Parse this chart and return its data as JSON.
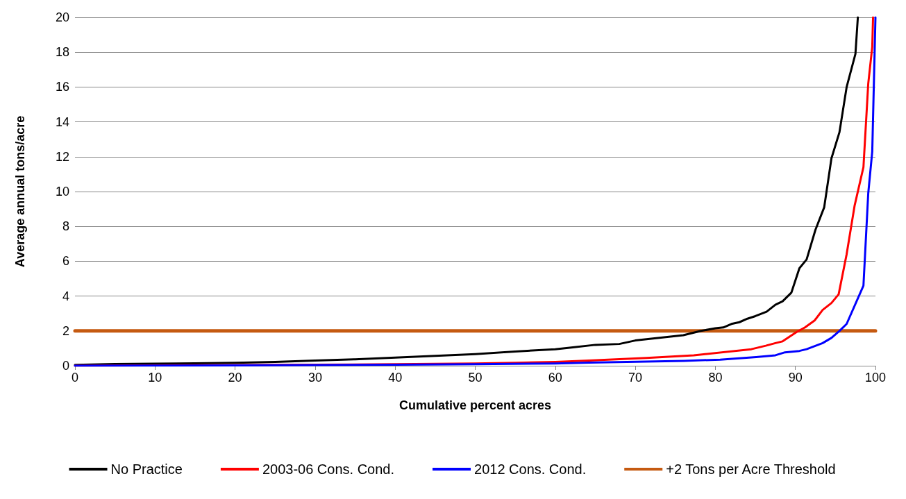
{
  "chart_data": {
    "type": "line",
    "xlabel": "Cumulative percent acres",
    "ylabel": "Average annual tons/acre",
    "xlim": [
      0,
      100
    ],
    "xticks": [
      0,
      10,
      20,
      30,
      40,
      50,
      60,
      70,
      80,
      90,
      100
    ],
    "ylim": [
      0,
      20
    ],
    "yticks": [
      0,
      2,
      4,
      6,
      8,
      10,
      12,
      14,
      16,
      18,
      20
    ],
    "grid": "y",
    "legend": "bottom",
    "marker": "none",
    "line_style": "solid",
    "series": [
      {
        "name": "No Practice",
        "color": "#000000",
        "x": [
          0,
          5,
          10,
          15,
          20,
          25,
          30,
          35,
          40,
          45,
          50,
          55,
          60,
          62,
          65,
          68,
          70,
          72,
          74,
          76,
          78.2,
          80,
          81,
          82,
          83,
          84,
          85,
          86.4,
          87.5,
          88.4,
          89.5,
          90.5,
          91.4,
          92.5,
          93.6,
          94.5,
          95.5,
          96.4,
          97.5,
          97.8
        ],
        "values": [
          0.05,
          0.1,
          0.12,
          0.14,
          0.17,
          0.22,
          0.3,
          0.37,
          0.47,
          0.57,
          0.67,
          0.82,
          0.95,
          1.05,
          1.2,
          1.25,
          1.45,
          1.55,
          1.65,
          1.75,
          2,
          2.15,
          2.2,
          2.4,
          2.5,
          2.7,
          2.85,
          3.1,
          3.5,
          3.7,
          4.2,
          5.6,
          6.1,
          7.8,
          9.1,
          11.9,
          13.4,
          16,
          17.9,
          20
        ]
      },
      {
        "name": "2003-06 Cons. Cond.",
        "color": "#ff0000",
        "x": [
          0,
          20,
          30,
          40,
          50,
          55,
          60,
          64.2,
          71.4,
          77.3,
          84.5,
          86.3,
          87.5,
          88.4,
          90.2,
          91.2,
          92.4,
          93.4,
          94.5,
          95.4,
          96.4,
          97.4,
          98.5,
          99.1,
          99.6,
          99.7
        ],
        "values": [
          0,
          0.04,
          0.06,
          0.09,
          0.13,
          0.17,
          0.22,
          0.3,
          0.45,
          0.6,
          0.95,
          1.15,
          1.3,
          1.4,
          1.95,
          2.2,
          2.6,
          3.2,
          3.6,
          4.1,
          6.4,
          9.2,
          11.4,
          16.2,
          18.3,
          20
        ]
      },
      {
        "name": "2012 Cons. Cond.",
        "color": "#0000ff",
        "x": [
          0,
          20,
          40,
          50,
          60,
          64.2,
          76.1,
          80.6,
          85.1,
          87.5,
          88.7,
          90.5,
          91.4,
          93.4,
          94.5,
          95.5,
          96.4,
          98.5,
          99.1,
          99.6,
          100
        ],
        "values": [
          0,
          0.02,
          0.06,
          0.09,
          0.13,
          0.18,
          0.28,
          0.35,
          0.5,
          0.6,
          0.77,
          0.85,
          0.95,
          1.3,
          1.6,
          2,
          2.4,
          4.6,
          9.9,
          12.3,
          20
        ]
      },
      {
        "name": "+2 Tons per Acre Threshold",
        "color": "#c55a11",
        "x": [
          0,
          100
        ],
        "values": [
          2,
          2
        ]
      }
    ]
  }
}
